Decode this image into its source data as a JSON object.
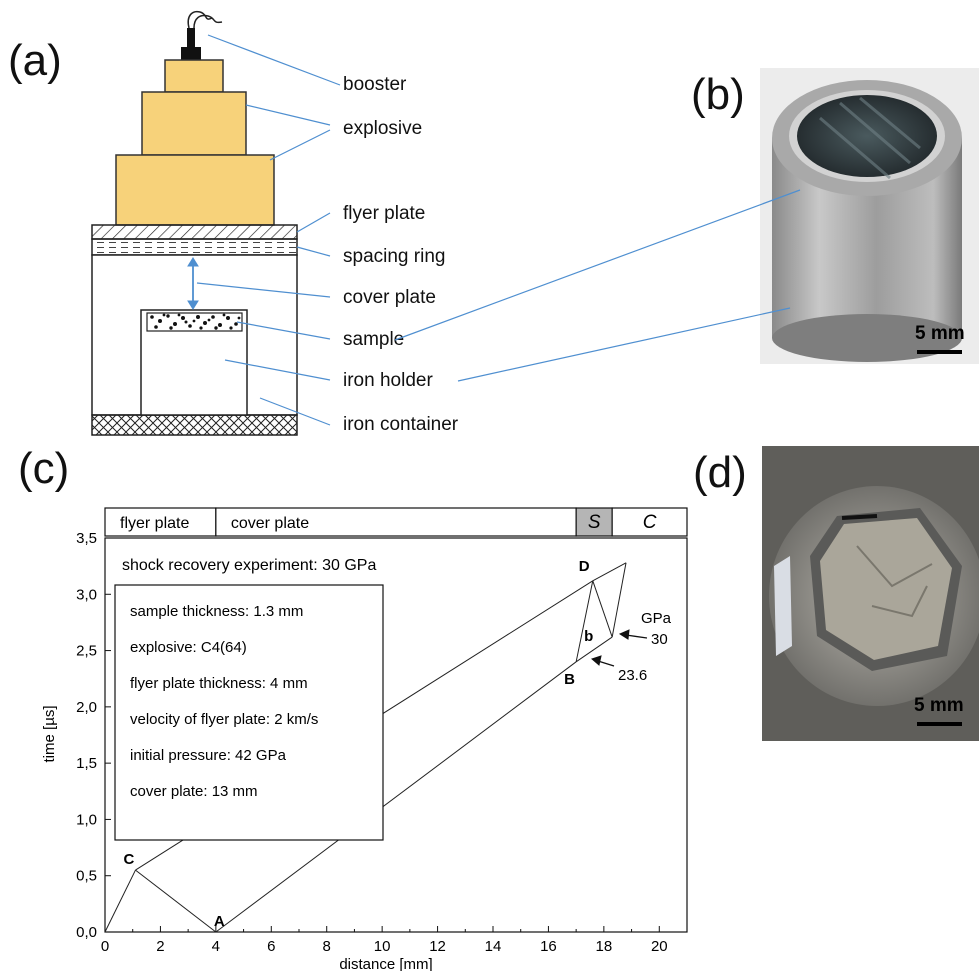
{
  "panels": {
    "a": "(a)",
    "b": "(b)",
    "c": "(c)",
    "d": "(d)"
  },
  "diagram_a": {
    "labels": [
      "booster",
      "explosive",
      "flyer plate",
      "spacing ring",
      "cover plate",
      "sample",
      "iron holder",
      "iron container"
    ],
    "colors": {
      "explosive": "#f7d27a",
      "explosive_stroke": "#333333",
      "leader": "#4f8fd0",
      "arrow": "#4f8fd0"
    }
  },
  "photo_b": {
    "scale": "5 mm"
  },
  "photo_d": {
    "scale": "5 mm"
  },
  "chart_data": {
    "type": "line",
    "xlabel": "distance [mm]",
    "ylabel": "time [µs]",
    "xlim": [
      0,
      21
    ],
    "ylim": [
      0,
      3.5
    ],
    "xticks": [
      "0",
      "2",
      "4",
      "6",
      "8",
      "10",
      "12",
      "14",
      "16",
      "18",
      "20"
    ],
    "yticks": [
      "0,0",
      "0,5",
      "1,0",
      "1,5",
      "2,0",
      "2,5",
      "3,0",
      "3,5"
    ],
    "layers": [
      {
        "label": "flyer plate",
        "x0": 0,
        "x1": 4
      },
      {
        "label": "cover plate",
        "x0": 4,
        "x1": 17
      },
      {
        "label": "S",
        "x0": 17,
        "x1": 18.3,
        "shaded": true
      },
      {
        "label": "C",
        "x0": 18.3,
        "x1": 21
      }
    ],
    "title": "shock recovery experiment: 30 GPa",
    "info_box": [
      "sample thickness: 1.3 mm",
      "explosive: C4(64)",
      "flyer plate thickness: 4 mm",
      "velocity of flyer plate: 2 km/s",
      "initial pressure: 42 GPa",
      "cover plate: 13 mm"
    ],
    "points": {
      "A": [
        4,
        0
      ],
      "C": [
        1.1,
        0.55
      ],
      "B": [
        17,
        2.4
      ],
      "D": [
        17.6,
        3.12
      ],
      "b": [
        18.3,
        2.62
      ]
    },
    "segments": [
      [
        [
          0,
          0
        ],
        [
          1.1,
          0.55
        ]
      ],
      [
        [
          1.1,
          0.55
        ],
        [
          4,
          0
        ]
      ],
      [
        [
          1.1,
          0.55
        ],
        [
          17.6,
          3.12
        ]
      ],
      [
        [
          4,
          0
        ],
        [
          17,
          2.4
        ]
      ],
      [
        [
          17,
          2.4
        ],
        [
          17.6,
          3.12
        ]
      ],
      [
        [
          17,
          2.4
        ],
        [
          18.3,
          2.62
        ]
      ],
      [
        [
          17.6,
          3.12
        ],
        [
          18.3,
          2.62
        ]
      ],
      [
        [
          17.6,
          3.12
        ],
        [
          18.8,
          3.28
        ]
      ],
      [
        [
          18.3,
          2.62
        ],
        [
          18.8,
          3.28
        ]
      ]
    ],
    "pressure_unit": "GPa",
    "pressures": [
      "30",
      "23.6"
    ]
  }
}
